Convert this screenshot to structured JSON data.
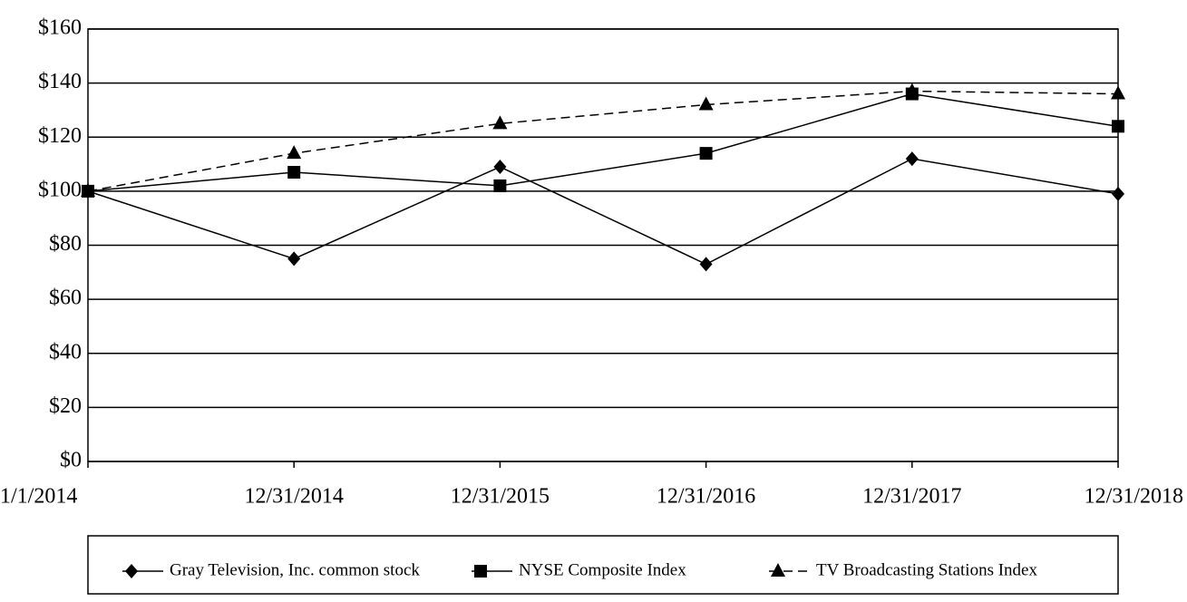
{
  "chart_data": {
    "type": "line",
    "categories": [
      "1/1/2014",
      "12/31/2014",
      "12/31/2015",
      "12/31/2016",
      "12/31/2017",
      "12/31/2018"
    ],
    "series": [
      {
        "name": "Gray Television, Inc. common stock",
        "color": "#000000",
        "marker": "diamond",
        "dashed": false,
        "values": [
          100,
          75,
          109,
          73,
          112,
          99
        ]
      },
      {
        "name": "NYSE Composite Index",
        "color": "#000000",
        "marker": "square",
        "dashed": false,
        "values": [
          100,
          107,
          102,
          114,
          136,
          124
        ]
      },
      {
        "name": "TV Broadcasting Stations Index",
        "color": "#000000",
        "marker": "triangle",
        "dashed": true,
        "values": [
          100,
          114,
          125,
          132,
          137,
          136
        ]
      }
    ],
    "ylim": [
      0,
      160
    ],
    "yticks": [
      {
        "value": 0,
        "label": "$0"
      },
      {
        "value": 20,
        "label": "$20"
      },
      {
        "value": 40,
        "label": "$40"
      },
      {
        "value": 60,
        "label": "$60"
      },
      {
        "value": 80,
        "label": "$80"
      },
      {
        "value": 100,
        "label": "$100"
      },
      {
        "value": 120,
        "label": "$120"
      },
      {
        "value": 140,
        "label": "$140"
      },
      {
        "value": 160,
        "label": "$160"
      }
    ],
    "grid": true,
    "legend": "bottom"
  }
}
